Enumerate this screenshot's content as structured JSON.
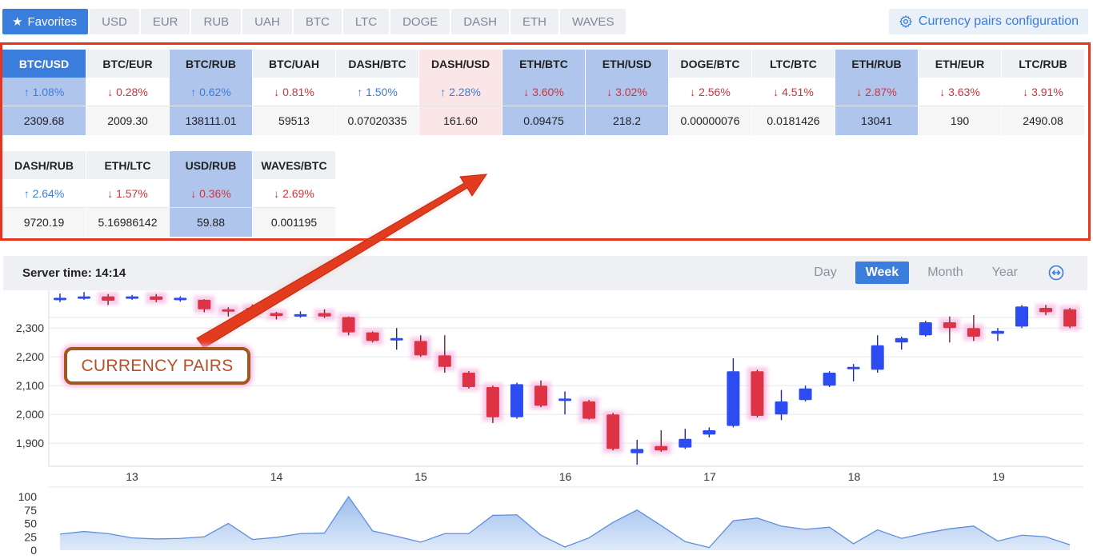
{
  "tabs": {
    "favorites_label": "Favorites",
    "items": [
      "USD",
      "EUR",
      "RUB",
      "UAH",
      "BTC",
      "LTC",
      "DOGE",
      "DASH",
      "ETH",
      "WAVES"
    ],
    "config_label": "Currency pairs configuration"
  },
  "pairs": {
    "row1": [
      {
        "name": "BTC/USD",
        "change": "↑ 1.08%",
        "price": "2309.68",
        "dir": "up",
        "state": "active"
      },
      {
        "name": "BTC/EUR",
        "change": "↓ 0.28%",
        "price": "2009.30",
        "dir": "down",
        "state": ""
      },
      {
        "name": "BTC/RUB",
        "change": "↑ 0.62%",
        "price": "138111.01",
        "dir": "up",
        "state": "sel"
      },
      {
        "name": "BTC/UAH",
        "change": "↓ 0.81%",
        "price": "59513",
        "dir": "down",
        "state": ""
      },
      {
        "name": "DASH/BTC",
        "change": "↑ 1.50%",
        "price": "0.07020335",
        "dir": "up",
        "state": ""
      },
      {
        "name": "DASH/USD",
        "change": "↑ 2.28%",
        "price": "161.60",
        "dir": "up",
        "state": "pink"
      },
      {
        "name": "ETH/BTC",
        "change": "↓ 3.60%",
        "price": "0.09475",
        "dir": "down",
        "state": "sel"
      },
      {
        "name": "ETH/USD",
        "change": "↓ 3.02%",
        "price": "218.2",
        "dir": "down",
        "state": "sel"
      },
      {
        "name": "DOGE/BTC",
        "change": "↓ 2.56%",
        "price": "0.00000076",
        "dir": "down",
        "state": ""
      },
      {
        "name": "LTC/BTC",
        "change": "↓ 4.51%",
        "price": "0.0181426",
        "dir": "down",
        "state": ""
      },
      {
        "name": "ETH/RUB",
        "change": "↓ 2.87%",
        "price": "13041",
        "dir": "down",
        "state": "sel"
      },
      {
        "name": "ETH/EUR",
        "change": "↓ 3.63%",
        "price": "190",
        "dir": "down",
        "state": ""
      },
      {
        "name": "LTC/RUB",
        "change": "↓ 3.91%",
        "price": "2490.08",
        "dir": "down",
        "state": ""
      }
    ],
    "row2": [
      {
        "name": "DASH/RUB",
        "change": "↑ 2.64%",
        "price": "9720.19",
        "dir": "up",
        "state": ""
      },
      {
        "name": "ETH/LTC",
        "change": "↓ 1.57%",
        "price": "5.16986142",
        "dir": "down",
        "state": ""
      },
      {
        "name": "USD/RUB",
        "change": "↓ 0.36%",
        "price": "59.88",
        "dir": "down",
        "state": "sel"
      },
      {
        "name": "WAVES/BTC",
        "change": "↓ 2.69%",
        "price": "0.001195",
        "dir": "down",
        "state": ""
      }
    ]
  },
  "chart": {
    "server_time": "Server time: 14:14",
    "periods": [
      "Day",
      "Week",
      "Month",
      "Year"
    ],
    "active_period": "Week"
  },
  "annotation": "CURRENCY PAIRS",
  "colors": {
    "up": "#2c4bf0",
    "down": "#dd3344",
    "accent": "#3b7ddd",
    "highlight": "#e8341f"
  },
  "chart_data": {
    "type": "candlestick",
    "x_ticks": [
      "13",
      "14",
      "15",
      "16",
      "17",
      "18",
      "19"
    ],
    "y_ticks": [
      "2,300",
      "2,200",
      "2,100",
      "2,000",
      "1,900"
    ],
    "ylim": [
      1820,
      2420
    ],
    "volume_ticks": [
      "100",
      "75",
      "50",
      "25",
      "0"
    ],
    "volume_ylim": [
      0,
      100
    ],
    "candles": [
      {
        "o": 2405,
        "c": 2405,
        "h": 2420,
        "l": 2390
      },
      {
        "o": 2405,
        "c": 2410,
        "h": 2425,
        "l": 2398
      },
      {
        "o": 2410,
        "c": 2395,
        "h": 2418,
        "l": 2380
      },
      {
        "o": 2405,
        "c": 2410,
        "h": 2415,
        "l": 2398
      },
      {
        "o": 2410,
        "c": 2398,
        "h": 2418,
        "l": 2390
      },
      {
        "o": 2398,
        "c": 2405,
        "h": 2410,
        "l": 2392
      },
      {
        "o": 2398,
        "c": 2365,
        "h": 2400,
        "l": 2355
      },
      {
        "o": 2365,
        "c": 2360,
        "h": 2372,
        "l": 2340
      },
      {
        "o": 2370,
        "c": 2355,
        "h": 2382,
        "l": 2350
      },
      {
        "o": 2352,
        "c": 2342,
        "h": 2356,
        "l": 2330
      },
      {
        "o": 2342,
        "c": 2348,
        "h": 2358,
        "l": 2336
      },
      {
        "o": 2352,
        "c": 2340,
        "h": 2365,
        "l": 2335
      },
      {
        "o": 2338,
        "c": 2285,
        "h": 2340,
        "l": 2275
      },
      {
        "o": 2285,
        "c": 2255,
        "h": 2288,
        "l": 2250
      },
      {
        "o": 2260,
        "c": 2265,
        "h": 2300,
        "l": 2225
      },
      {
        "o": 2255,
        "c": 2205,
        "h": 2275,
        "l": 2200
      },
      {
        "o": 2205,
        "c": 2165,
        "h": 2275,
        "l": 2145
      },
      {
        "o": 2145,
        "c": 2095,
        "h": 2150,
        "l": 2090
      },
      {
        "o": 2095,
        "c": 1990,
        "h": 2100,
        "l": 1970
      },
      {
        "o": 1990,
        "c": 2105,
        "h": 2110,
        "l": 1985
      },
      {
        "o": 2100,
        "c": 2030,
        "h": 2118,
        "l": 2025
      },
      {
        "o": 2050,
        "c": 2055,
        "h": 2080,
        "l": 2000
      },
      {
        "o": 2045,
        "c": 1985,
        "h": 2050,
        "l": 1982
      },
      {
        "o": 2000,
        "c": 1880,
        "h": 2005,
        "l": 1875
      },
      {
        "o": 1865,
        "c": 1880,
        "h": 1912,
        "l": 1825
      },
      {
        "o": 1890,
        "c": 1875,
        "h": 1945,
        "l": 1870
      },
      {
        "o": 1885,
        "c": 1915,
        "h": 1950,
        "l": 1880
      },
      {
        "o": 1930,
        "c": 1945,
        "h": 1955,
        "l": 1920
      },
      {
        "o": 1960,
        "c": 2150,
        "h": 2195,
        "l": 1955
      },
      {
        "o": 2150,
        "c": 1995,
        "h": 2155,
        "l": 1990
      },
      {
        "o": 2000,
        "c": 2045,
        "h": 2085,
        "l": 1980
      },
      {
        "o": 2050,
        "c": 2090,
        "h": 2100,
        "l": 2045
      },
      {
        "o": 2100,
        "c": 2145,
        "h": 2150,
        "l": 2095
      },
      {
        "o": 2160,
        "c": 2165,
        "h": 2175,
        "l": 2115
      },
      {
        "o": 2155,
        "c": 2240,
        "h": 2275,
        "l": 2145
      },
      {
        "o": 2250,
        "c": 2265,
        "h": 2270,
        "l": 2225
      },
      {
        "o": 2275,
        "c": 2320,
        "h": 2325,
        "l": 2270
      },
      {
        "o": 2320,
        "c": 2300,
        "h": 2340,
        "l": 2250
      },
      {
        "o": 2300,
        "c": 2270,
        "h": 2345,
        "l": 2255
      },
      {
        "o": 2280,
        "c": 2290,
        "h": 2300,
        "l": 2255
      },
      {
        "o": 2305,
        "c": 2375,
        "h": 2380,
        "l": 2300
      },
      {
        "o": 2370,
        "c": 2355,
        "h": 2380,
        "l": 2345
      },
      {
        "o": 2365,
        "c": 2305,
        "h": 2370,
        "l": 2300
      }
    ],
    "volume": [
      30,
      35,
      31,
      23,
      21,
      22,
      25,
      50,
      20,
      24,
      31,
      32,
      100,
      36,
      26,
      15,
      31,
      31,
      65,
      66,
      28,
      6,
      23,
      52,
      75,
      46,
      16,
      5,
      55,
      60,
      45,
      39,
      43,
      12,
      38,
      22,
      32,
      40,
      45,
      17,
      28,
      25,
      10
    ]
  }
}
